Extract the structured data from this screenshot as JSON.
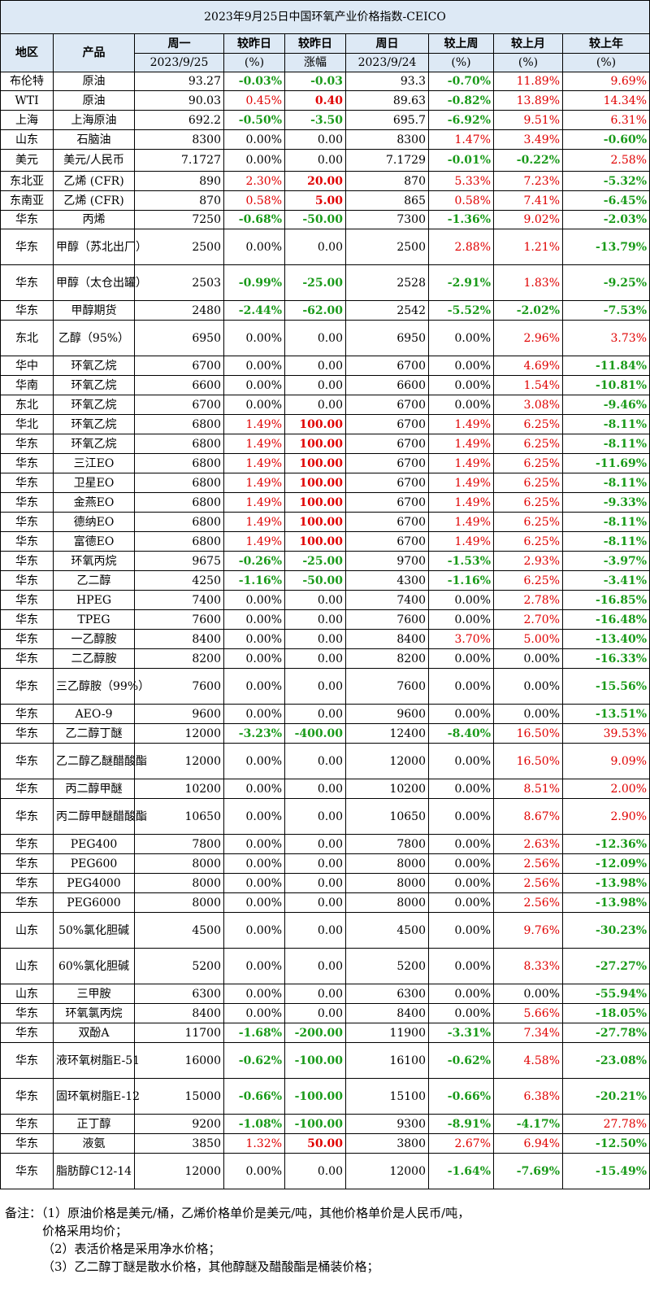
{
  "title": "2023年9月25日中国环氧产业价格指数-CEICO",
  "headers": {
    "region": "地区",
    "product": "产品",
    "mon": "周一",
    "mon_date": "2023/9/25",
    "chg_pct": "较昨日",
    "chg_pct_unit": "(%)",
    "chg_abs": "较昨日",
    "chg_abs_unit": "涨幅",
    "sun": "周日",
    "sun_date": "2023/9/24",
    "week": "较上周",
    "week_unit": "(%)",
    "month": "较上月",
    "month_unit": "(%)",
    "year": "较上年",
    "year_unit": "(%)"
  },
  "rows": [
    {
      "region": "布伦特",
      "product": "原油",
      "mon": "93.27",
      "dp": "-0.03%",
      "da": "-0.03",
      "sun": "93.3",
      "wk": "-0.70%",
      "mo": "11.89%",
      "yr": "9.69%",
      "h": 23
    },
    {
      "region": "WTI",
      "product": "原油",
      "mon": "90.03",
      "dp": "0.45%",
      "da": "0.40",
      "sun": "89.63",
      "wk": "-0.82%",
      "mo": "13.89%",
      "yr": "14.34%",
      "h": 24
    },
    {
      "region": "上海",
      "product": "上海原油",
      "mon": "692.2",
      "dp": "-0.50%",
      "da": "-3.50",
      "sun": "695.7",
      "wk": "-6.92%",
      "mo": "9.51%",
      "yr": "6.31%",
      "h": 24
    },
    {
      "region": "山东",
      "product": "石脑油",
      "mon": "8300",
      "dp": "0.00%",
      "da": "0.00",
      "sun": "8300",
      "wk": "1.47%",
      "mo": "3.49%",
      "yr": "-0.60%",
      "h": 24
    },
    {
      "region": "美元",
      "product": "美元/人民币",
      "mon": "7.1727",
      "dp": "0.00%",
      "da": "0.00",
      "sun": "7.1729",
      "wk": "-0.01%",
      "mo": "-0.22%",
      "yr": "2.58%",
      "h": 27
    },
    {
      "region": "东北亚",
      "product": "乙烯 (CFR)",
      "mon": "890",
      "dp": "2.30%",
      "da": "20.00",
      "sun": "870",
      "wk": "5.33%",
      "mo": "7.23%",
      "yr": "-5.32%",
      "h": 24
    },
    {
      "region": "东南亚",
      "product": "乙烯 (CFR)",
      "mon": "870",
      "dp": "0.58%",
      "da": "5.00",
      "sun": "865",
      "wk": "0.58%",
      "mo": "7.41%",
      "yr": "-6.45%",
      "h": 24
    },
    {
      "region": "华东",
      "product": "丙烯",
      "mon": "7250",
      "dp": "-0.68%",
      "da": "-50.00",
      "sun": "7300",
      "wk": "-1.36%",
      "mo": "9.02%",
      "yr": "-2.03%",
      "h": 23
    },
    {
      "region": "华东",
      "product": "甲醇（苏北出厂）",
      "mon": "2500",
      "dp": "0.00%",
      "da": "0.00",
      "sun": "2500",
      "wk": "2.88%",
      "mo": "1.21%",
      "yr": "-13.79%",
      "h": 44
    },
    {
      "region": "华东",
      "product": "甲醇（太仓出罐）",
      "mon": "2503",
      "dp": "-0.99%",
      "da": "-25.00",
      "sun": "2528",
      "wk": "-2.91%",
      "mo": "1.83%",
      "yr": "-9.25%",
      "h": 44
    },
    {
      "region": "华东",
      "product": "甲醇期货",
      "mon": "2480",
      "dp": "-2.44%",
      "da": "-62.00",
      "sun": "2542",
      "wk": "-5.52%",
      "mo": "-2.02%",
      "yr": "-7.53%",
      "h": 24
    },
    {
      "region": "东北",
      "product": "乙醇（95%）",
      "mon": "6950",
      "dp": "0.00%",
      "da": "0.00",
      "sun": "6950",
      "wk": "0.00%",
      "mo": "2.96%",
      "yr": "3.73%",
      "h": 44
    },
    {
      "region": "华中",
      "product": "环氧乙烷",
      "mon": "6700",
      "dp": "0.00%",
      "da": "0.00",
      "sun": "6700",
      "wk": "0.00%",
      "mo": "4.69%",
      "yr": "-11.84%",
      "h": 24
    },
    {
      "region": "华南",
      "product": "环氧乙烷",
      "mon": "6600",
      "dp": "0.00%",
      "da": "0.00",
      "sun": "6600",
      "wk": "0.00%",
      "mo": "1.54%",
      "yr": "-10.81%",
      "h": 24
    },
    {
      "region": "东北",
      "product": "环氧乙烷",
      "mon": "6700",
      "dp": "0.00%",
      "da": "0.00",
      "sun": "6700",
      "wk": "0.00%",
      "mo": "3.08%",
      "yr": "-9.46%",
      "h": 24
    },
    {
      "region": "华北",
      "product": "环氧乙烷",
      "mon": "6800",
      "dp": "1.49%",
      "da": "100.00",
      "sun": "6700",
      "wk": "1.49%",
      "mo": "6.25%",
      "yr": "-8.11%",
      "h": 24
    },
    {
      "region": "华东",
      "product": "环氧乙烷",
      "mon": "6800",
      "dp": "1.49%",
      "da": "100.00",
      "sun": "6700",
      "wk": "1.49%",
      "mo": "6.25%",
      "yr": "-8.11%",
      "h": 24
    },
    {
      "region": "华东",
      "product": "三江EO",
      "mon": "6800",
      "dp": "1.49%",
      "da": "100.00",
      "sun": "6700",
      "wk": "1.49%",
      "mo": "6.25%",
      "yr": "-11.69%",
      "h": 24
    },
    {
      "region": "华东",
      "product": "卫星EO",
      "mon": "6800",
      "dp": "1.49%",
      "da": "100.00",
      "sun": "6700",
      "wk": "1.49%",
      "mo": "6.25%",
      "yr": "-8.11%",
      "h": 24
    },
    {
      "region": "华东",
      "product": "金燕EO",
      "mon": "6800",
      "dp": "1.49%",
      "da": "100.00",
      "sun": "6700",
      "wk": "1.49%",
      "mo": "6.25%",
      "yr": "-9.33%",
      "h": 24
    },
    {
      "region": "华东",
      "product": "德纳EO",
      "mon": "6800",
      "dp": "1.49%",
      "da": "100.00",
      "sun": "6700",
      "wk": "1.49%",
      "mo": "6.25%",
      "yr": "-8.11%",
      "h": 24
    },
    {
      "region": "华东",
      "product": "富德EO",
      "mon": "6800",
      "dp": "1.49%",
      "da": "100.00",
      "sun": "6700",
      "wk": "1.49%",
      "mo": "6.25%",
      "yr": "-8.11%",
      "h": 24
    },
    {
      "region": "华东",
      "product": "环氧丙烷",
      "mon": "9675",
      "dp": "-0.26%",
      "da": "-25.00",
      "sun": "9700",
      "wk": "-1.53%",
      "mo": "2.93%",
      "yr": "-3.97%",
      "h": 24
    },
    {
      "region": "华东",
      "product": "乙二醇",
      "mon": "4250",
      "dp": "-1.16%",
      "da": "-50.00",
      "sun": "4300",
      "wk": "-1.16%",
      "mo": "6.25%",
      "yr": "-3.41%",
      "h": 24
    },
    {
      "region": "华东",
      "product": "HPEG",
      "mon": "7400",
      "dp": "0.00%",
      "da": "0.00",
      "sun": "7400",
      "wk": "0.00%",
      "mo": "2.78%",
      "yr": "-16.85%",
      "h": 24
    },
    {
      "region": "华东",
      "product": "TPEG",
      "mon": "7600",
      "dp": "0.00%",
      "da": "0.00",
      "sun": "7600",
      "wk": "0.00%",
      "mo": "2.70%",
      "yr": "-16.48%",
      "h": 24
    },
    {
      "region": "华东",
      "product": "一乙醇胺",
      "mon": "8400",
      "dp": "0.00%",
      "da": "0.00",
      "sun": "8400",
      "wk": "3.70%",
      "mo": "5.00%",
      "yr": "-13.40%",
      "h": 24
    },
    {
      "region": "华东",
      "product": "二乙醇胺",
      "mon": "8200",
      "dp": "0.00%",
      "da": "0.00",
      "sun": "8200",
      "wk": "0.00%",
      "mo": "0.00%",
      "yr": "-16.33%",
      "h": 24
    },
    {
      "region": "华东",
      "product": "三乙醇胺（99%）",
      "mon": "7600",
      "dp": "0.00%",
      "da": "0.00",
      "sun": "7600",
      "wk": "0.00%",
      "mo": "0.00%",
      "yr": "-15.56%",
      "h": 44
    },
    {
      "region": "华东",
      "product": "AEO-9",
      "mon": "9600",
      "dp": "0.00%",
      "da": "0.00",
      "sun": "9600",
      "wk": "0.00%",
      "mo": "0.00%",
      "yr": "-13.51%",
      "h": 24
    },
    {
      "region": "华东",
      "product": "乙二醇丁醚",
      "mon": "12000",
      "dp": "-3.23%",
      "da": "-400.00",
      "sun": "12400",
      "wk": "-8.40%",
      "mo": "16.50%",
      "yr": "39.53%",
      "h": 24
    },
    {
      "region": "华东",
      "product": "乙二醇乙醚醋酸酯",
      "mon": "12000",
      "dp": "0.00%",
      "da": "0.00",
      "sun": "12000",
      "wk": "0.00%",
      "mo": "16.50%",
      "yr": "9.09%",
      "h": 44
    },
    {
      "region": "华东",
      "product": "丙二醇甲醚",
      "mon": "10200",
      "dp": "0.00%",
      "da": "0.00",
      "sun": "10200",
      "wk": "0.00%",
      "mo": "8.51%",
      "yr": "2.00%",
      "h": 24
    },
    {
      "region": "华东",
      "product": "丙二醇甲醚醋酸酯",
      "mon": "10650",
      "dp": "0.00%",
      "da": "0.00",
      "sun": "10650",
      "wk": "0.00%",
      "mo": "8.67%",
      "yr": "2.90%",
      "h": 44
    },
    {
      "region": "华东",
      "product": "PEG400",
      "mon": "7800",
      "dp": "0.00%",
      "da": "0.00",
      "sun": "7800",
      "wk": "0.00%",
      "mo": "2.63%",
      "yr": "-12.36%",
      "h": 24
    },
    {
      "region": "华东",
      "product": "PEG600",
      "mon": "8000",
      "dp": "0.00%",
      "da": "0.00",
      "sun": "8000",
      "wk": "0.00%",
      "mo": "2.56%",
      "yr": "-12.09%",
      "h": 24
    },
    {
      "region": "华东",
      "product": "PEG4000",
      "mon": "8000",
      "dp": "0.00%",
      "da": "0.00",
      "sun": "8000",
      "wk": "0.00%",
      "mo": "2.56%",
      "yr": "-13.98%",
      "h": 24
    },
    {
      "region": "华东",
      "product": "PEG6000",
      "mon": "8000",
      "dp": "0.00%",
      "da": "0.00",
      "sun": "8000",
      "wk": "0.00%",
      "mo": "2.56%",
      "yr": "-13.98%",
      "h": 24
    },
    {
      "region": "山东",
      "product": "50%氯化胆碱",
      "mon": "4500",
      "dp": "0.00%",
      "da": "0.00",
      "sun": "4500",
      "wk": "0.00%",
      "mo": "9.76%",
      "yr": "-30.23%",
      "h": 44
    },
    {
      "region": "山东",
      "product": "60%氯化胆碱",
      "mon": "5200",
      "dp": "0.00%",
      "da": "0.00",
      "sun": "5200",
      "wk": "0.00%",
      "mo": "8.33%",
      "yr": "-27.27%",
      "h": 44
    },
    {
      "region": "山东",
      "product": "三甲胺",
      "mon": "6300",
      "dp": "0.00%",
      "da": "0.00",
      "sun": "6300",
      "wk": "0.00%",
      "mo": "0.00%",
      "yr": "-55.94%",
      "h": 24
    },
    {
      "region": "华东",
      "product": "环氧氯丙烷",
      "mon": "8400",
      "dp": "0.00%",
      "da": "0.00",
      "sun": "8400",
      "wk": "0.00%",
      "mo": "5.66%",
      "yr": "-18.05%",
      "h": 24
    },
    {
      "region": "华东",
      "product": "双酚A",
      "mon": "11700",
      "dp": "-1.68%",
      "da": "-200.00",
      "sun": "11900",
      "wk": "-3.31%",
      "mo": "7.34%",
      "yr": "-27.78%",
      "h": 24
    },
    {
      "region": "华东",
      "product": "液环氧树脂E-51",
      "mon": "16000",
      "dp": "-0.62%",
      "da": "-100.00",
      "sun": "16100",
      "wk": "-0.62%",
      "mo": "4.58%",
      "yr": "-23.08%",
      "h": 44
    },
    {
      "region": "华东",
      "product": "固环氧树脂E-12",
      "mon": "15000",
      "dp": "-0.66%",
      "da": "-100.00",
      "sun": "15100",
      "wk": "-0.66%",
      "mo": "6.38%",
      "yr": "-20.21%",
      "h": 44
    },
    {
      "region": "华东",
      "product": "正丁醇",
      "mon": "9200",
      "dp": "-1.08%",
      "da": "-100.00",
      "sun": "9300",
      "wk": "-8.91%",
      "mo": "-4.17%",
      "yr": "27.78%",
      "h": 24
    },
    {
      "region": "华东",
      "product": "液氨",
      "mon": "3850",
      "dp": "1.32%",
      "da": "50.00",
      "sun": "3800",
      "wk": "2.67%",
      "mo": "6.94%",
      "yr": "-12.50%",
      "h": 24
    },
    {
      "region": "华东",
      "product": "脂肪醇C12-14",
      "mon": "12000",
      "dp": "0.00%",
      "da": "0.00",
      "sun": "12000",
      "wk": "-1.64%",
      "mo": "-7.69%",
      "yr": "-15.49%",
      "h": 44
    }
  ],
  "notes": [
    "备注：（1）原油价格是美元/桶，乙烯价格单价是美元/吨，其他价格单价是人民币/吨，",
    "价格采用均价；",
    "（2）表活价格是采用净水价格；",
    "（3）乙二醇丁醚是散水价格，其他醇醚及醋酸酯是桶装价格；"
  ],
  "colors": {
    "header_bg": "#dde9f5",
    "up": "#e00000",
    "down": "#1a9a1a"
  }
}
